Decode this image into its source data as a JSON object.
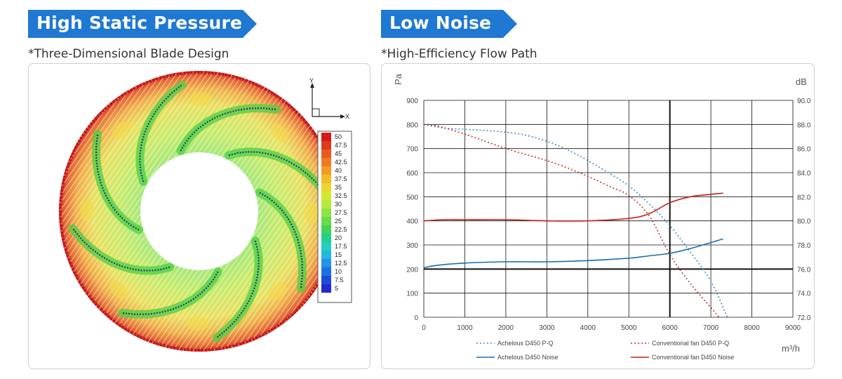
{
  "left": {
    "heading": "High Static Pressure",
    "subtitle": "*Three-Dimensional Blade Design",
    "axis_y": "Y",
    "axis_x": "X",
    "colorbar_labels": [
      "50",
      "47.5",
      "45",
      "42.5",
      "40",
      "37.5",
      "35",
      "32.5",
      "30",
      "27.5",
      "25",
      "22.5",
      "20",
      "17.5",
      "15",
      "12.5",
      "10",
      "7.5",
      "5"
    ],
    "colors": [
      "#d7191c",
      "#e03a1e",
      "#ea5a20",
      "#f07a22",
      "#f59a25",
      "#f2bb2a",
      "#e8d72e",
      "#d4e833",
      "#b3ec3a",
      "#8ee443",
      "#66dc4c",
      "#3fd456",
      "#22d08c",
      "#20d0c0",
      "#20b8e0",
      "#2094e8",
      "#1f6ee8",
      "#1f4ad8",
      "#1f2ad0"
    ],
    "blade_count": 8
  },
  "right": {
    "heading": "Low Noise",
    "subtitle": "*High-Efficiency Flow Path",
    "chart_data": {
      "type": "line",
      "xlabel": "m³/h",
      "ylabel_left": "Pa",
      "ylabel_right": "dB",
      "x_ticks": [
        "0",
        "1000",
        "2000",
        "3000",
        "4000",
        "5000",
        "6000",
        "7000",
        "8000",
        "9000"
      ],
      "y_left_ticks": [
        "0",
        "100",
        "200",
        "300",
        "400",
        "500",
        "600",
        "700",
        "800",
        "900"
      ],
      "y_right_ticks": [
        "72.0",
        "74.0",
        "76.0",
        "78.0",
        "80.0",
        "82.0",
        "84.0",
        "86.0",
        "88.0",
        "90.0"
      ],
      "xlim": [
        0,
        9000
      ],
      "ylim_left": [
        0,
        900
      ],
      "ylim_right": [
        72,
        90
      ],
      "grid": true,
      "bold_gridlines": {
        "x": 6000,
        "y_left": 200
      },
      "legend_position": "bottom",
      "series": [
        {
          "name": "Achelous D450 P-Q",
          "axis": "left",
          "color": "#3b8fc9",
          "dash": true,
          "x": [
            0,
            500,
            1000,
            1500,
            2000,
            2500,
            3000,
            3500,
            4000,
            4500,
            5000,
            5500,
            6000,
            6500,
            7000,
            7400
          ],
          "y": [
            800,
            785,
            780,
            775,
            768,
            755,
            730,
            695,
            650,
            600,
            545,
            470,
            380,
            270,
            150,
            0
          ]
        },
        {
          "name": "Conventional fan D450 P-Q",
          "axis": "left",
          "color": "#c8302a",
          "dash": true,
          "x": [
            0,
            300,
            1000,
            1500,
            2000,
            2500,
            3000,
            3500,
            4000,
            4500,
            5000,
            5500,
            6000,
            6500,
            7000,
            7200
          ],
          "y": [
            800,
            795,
            760,
            730,
            700,
            675,
            650,
            620,
            585,
            545,
            505,
            420,
            260,
            140,
            40,
            0
          ]
        },
        {
          "name": "Achelous D450 Noise",
          "axis": "right",
          "color": "#1a6fb0",
          "dash": false,
          "x": [
            0,
            300,
            1000,
            2000,
            3000,
            4000,
            5000,
            5500,
            6000,
            6500,
            7000,
            7300
          ],
          "y": [
            76.1,
            76.3,
            76.5,
            76.6,
            76.6,
            76.7,
            76.9,
            77.1,
            77.3,
            77.7,
            78.2,
            78.5
          ]
        },
        {
          "name": "Conventional fan D450 Noise",
          "axis": "right",
          "color": "#c8201a",
          "dash": false,
          "x": [
            0,
            500,
            1000,
            2000,
            3000,
            4000,
            5000,
            5500,
            6000,
            6500,
            7000,
            7300
          ],
          "y": [
            80.0,
            80.1,
            80.1,
            80.1,
            80.0,
            80.0,
            80.2,
            80.6,
            81.5,
            82.0,
            82.2,
            82.3
          ]
        }
      ]
    }
  }
}
